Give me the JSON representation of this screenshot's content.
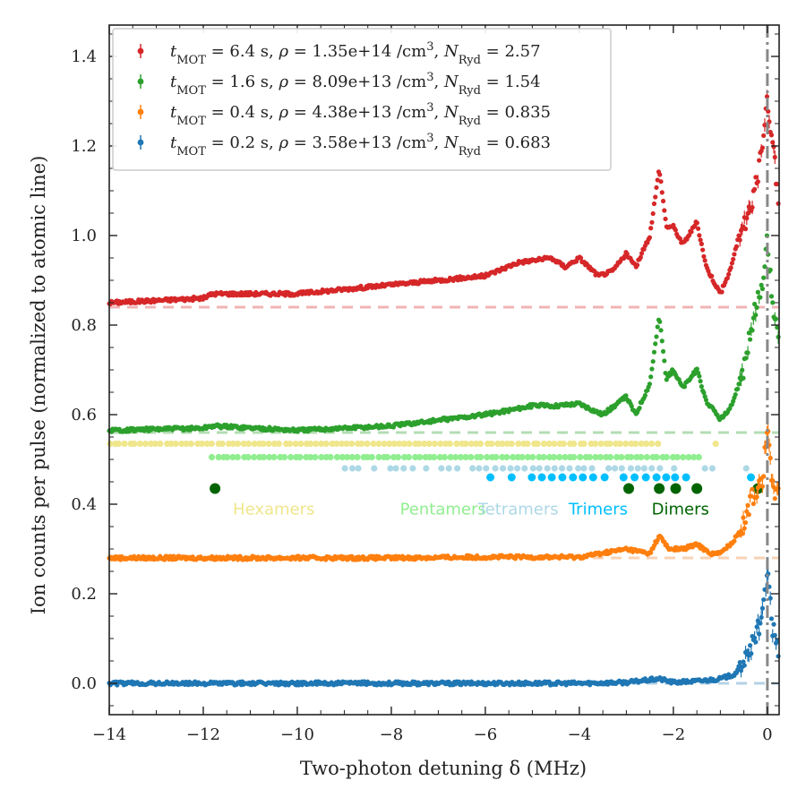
{
  "chart_data": {
    "type": "scatter",
    "xlabel": "Two-photon detuning δ (MHz)",
    "ylabel": "Ion counts per pulse (normalized to atomic line)",
    "xlim": [
      -14,
      0.25
    ],
    "ylim": [
      -0.07,
      1.47
    ],
    "x_ticks": [
      -14,
      -12,
      -10,
      -8,
      -6,
      -4,
      -2,
      0
    ],
    "x_tick_labels": [
      "−14",
      "−12",
      "−10",
      "−8",
      "−6",
      "−4",
      "−2",
      "0"
    ],
    "y_ticks": [
      0.0,
      0.2,
      0.4,
      0.6,
      0.8,
      1.0,
      1.2,
      1.4
    ],
    "y_tick_labels": [
      "0.0",
      "0.2",
      "0.4",
      "0.6",
      "0.8",
      "1.0",
      "1.2",
      "1.4"
    ],
    "grid": false,
    "legend_position": "top-left",
    "vertical_line_x": 0,
    "series": [
      {
        "key": "s64",
        "legend": {
          "t": "6.4",
          "rho": "1.35e+14",
          "n": "2.57"
        },
        "color": "#d62728",
        "baseline": 0.84,
        "baseline_color": "#f0b4b4",
        "x": [
          -14,
          -12,
          -11.8,
          -10,
          -8,
          -6,
          -5.3,
          -4.6,
          -4.3,
          -4.0,
          -3.6,
          -3.3,
          -3.0,
          -2.8,
          -2.5,
          -2.3,
          -2.15,
          -2.0,
          -1.8,
          -1.5,
          -1.3,
          -1.0,
          -0.8,
          -0.6,
          -0.4,
          -0.2,
          0.0,
          0.1,
          0.25
        ],
        "y": [
          0.85,
          0.86,
          0.87,
          0.87,
          0.89,
          0.91,
          0.94,
          0.95,
          0.93,
          0.95,
          0.91,
          0.92,
          0.96,
          0.93,
          1.0,
          1.15,
          1.02,
          1.02,
          0.98,
          1.03,
          0.93,
          0.87,
          0.92,
          1.0,
          1.05,
          1.13,
          1.3,
          1.22,
          1.06
        ]
      },
      {
        "key": "s16",
        "legend": {
          "t": "1.6",
          "rho": "8.09e+13",
          "n": "1.54"
        },
        "color": "#2ca02c",
        "baseline": 0.56,
        "baseline_color": "#b4dcb4",
        "x": [
          -14,
          -12,
          -11.8,
          -10,
          -8,
          -6,
          -5.0,
          -4.5,
          -4.0,
          -3.5,
          -3.0,
          -2.8,
          -2.5,
          -2.3,
          -2.15,
          -2.0,
          -1.8,
          -1.5,
          -1.3,
          -1.0,
          -0.8,
          -0.5,
          -0.3,
          -0.1,
          0.0,
          0.1,
          0.25
        ],
        "y": [
          0.565,
          0.57,
          0.575,
          0.565,
          0.575,
          0.6,
          0.62,
          0.62,
          0.625,
          0.6,
          0.64,
          0.6,
          0.67,
          0.82,
          0.68,
          0.7,
          0.66,
          0.7,
          0.63,
          0.59,
          0.61,
          0.7,
          0.82,
          0.9,
          1.0,
          0.85,
          0.76
        ]
      },
      {
        "key": "s04",
        "legend": {
          "t": "0.4",
          "rho": "4.38e+13",
          "n": "0.835"
        },
        "color": "#ff7f0e",
        "baseline": 0.28,
        "baseline_color": "#f8d2b4",
        "x": [
          -14,
          -12,
          -10,
          -8,
          -6,
          -4,
          -3.0,
          -2.5,
          -2.3,
          -2.1,
          -1.8,
          -1.5,
          -1.2,
          -1.0,
          -0.7,
          -0.5,
          -0.3,
          -0.1,
          0.0,
          0.1,
          0.25
        ],
        "y": [
          0.28,
          0.28,
          0.28,
          0.28,
          0.282,
          0.282,
          0.3,
          0.29,
          0.33,
          0.3,
          0.3,
          0.31,
          0.29,
          0.29,
          0.32,
          0.36,
          0.42,
          0.46,
          0.57,
          0.44,
          0.42
        ]
      },
      {
        "key": "s02",
        "legend": {
          "t": "0.2",
          "rho": "3.58e+13",
          "n": "0.683"
        },
        "color": "#1f77b4",
        "baseline": 0.0,
        "baseline_color": "#b4d2e6",
        "x": [
          -14,
          -12,
          -10,
          -8,
          -6,
          -4,
          -3,
          -2.3,
          -2,
          -1.5,
          -1.0,
          -0.7,
          -0.5,
          -0.3,
          -0.1,
          0.0,
          0.1,
          0.25
        ],
        "y": [
          0.0,
          0.0,
          0.0,
          0.0,
          0.0,
          0.0,
          0.002,
          0.01,
          0.002,
          0.005,
          0.01,
          0.02,
          0.05,
          0.09,
          0.15,
          0.26,
          0.13,
          0.07
        ]
      }
    ],
    "markers": [
      {
        "name": "Hexamers",
        "color": "#f0e68c",
        "y": 0.535,
        "x_range": [
          -14,
          -2.3
        ],
        "extra_x": [
          -1.1
        ],
        "label_x": -10.5,
        "density": "dense"
      },
      {
        "name": "Pentamers",
        "color": "#90ee90",
        "y": 0.505,
        "x_range": [
          -11.8,
          -1.4
        ],
        "extra_x": [],
        "label_x": -6.9,
        "density": "dense"
      },
      {
        "name": "Tetramers",
        "color": "#add8e6",
        "y": 0.48,
        "x_range": [
          -9.0,
          -1.0
        ],
        "extra_x": [
          -0.45
        ],
        "label_x": -5.3,
        "density": "medium"
      },
      {
        "name": "Trimers",
        "color": "#00bfff",
        "y": 0.46,
        "x_range": [
          -5.9,
          -1.7
        ],
        "extra_x": [
          -0.35
        ],
        "label_x": -3.6,
        "density": "sparse"
      },
      {
        "name": "Dimers",
        "color": "#006400",
        "y": 0.435,
        "x_list": [
          -11.75,
          -2.95,
          -2.3,
          -1.95,
          -1.5,
          -0.2
        ],
        "label_x": -1.85,
        "density": "list"
      }
    ]
  }
}
